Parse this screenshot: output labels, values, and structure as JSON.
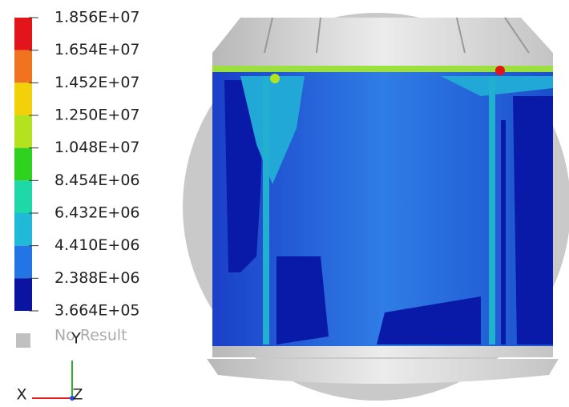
{
  "legend": {
    "labels": [
      "1.856E+07",
      "1.654E+07",
      "1.452E+07",
      "1.250E+07",
      "1.048E+07",
      "8.454E+06",
      "6.432E+06",
      "4.410E+06",
      "2.388E+06",
      "3.664E+05"
    ],
    "colors": [
      "#e3151b",
      "#f2731f",
      "#f2d00a",
      "#b4e21e",
      "#2fd21f",
      "#1fd8a8",
      "#21b9d8",
      "#2374e4",
      "#0a14a0"
    ],
    "no_result": "No Result",
    "no_result_color": "#c0c0c0"
  },
  "triad": {
    "x": "X",
    "y": "Y",
    "z": "Z"
  }
}
